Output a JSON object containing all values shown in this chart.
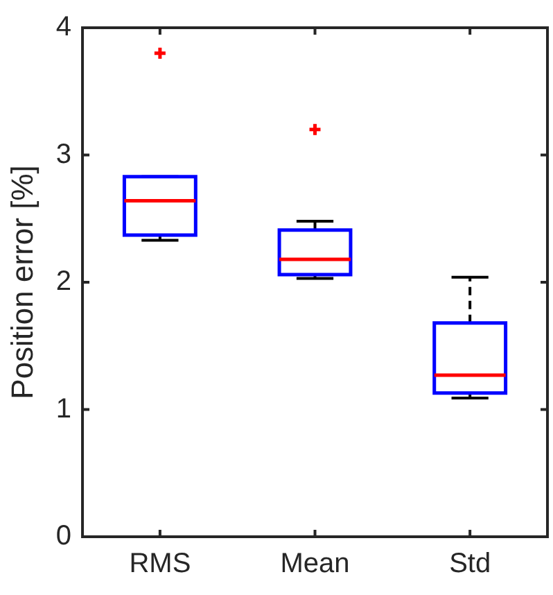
{
  "chart_data": {
    "type": "box",
    "ylabel": "Position error [%]",
    "categories": [
      "RMS",
      "Mean",
      "Std"
    ],
    "color": "#0000ff",
    "boxes": [
      {
        "low": 2.33,
        "q1": 2.37,
        "median": 2.64,
        "q3": 2.83,
        "high": 2.83,
        "outliers": [
          3.8
        ]
      },
      {
        "low": 2.03,
        "q1": 2.06,
        "median": 2.18,
        "q3": 2.41,
        "high": 2.48,
        "outliers": [
          3.2
        ]
      },
      {
        "low": 1.09,
        "q1": 1.13,
        "median": 1.27,
        "q3": 1.68,
        "high": 2.04
      }
    ],
    "ylim": [
      0,
      4
    ],
    "yticks": [
      0,
      1,
      2,
      3,
      4
    ]
  }
}
